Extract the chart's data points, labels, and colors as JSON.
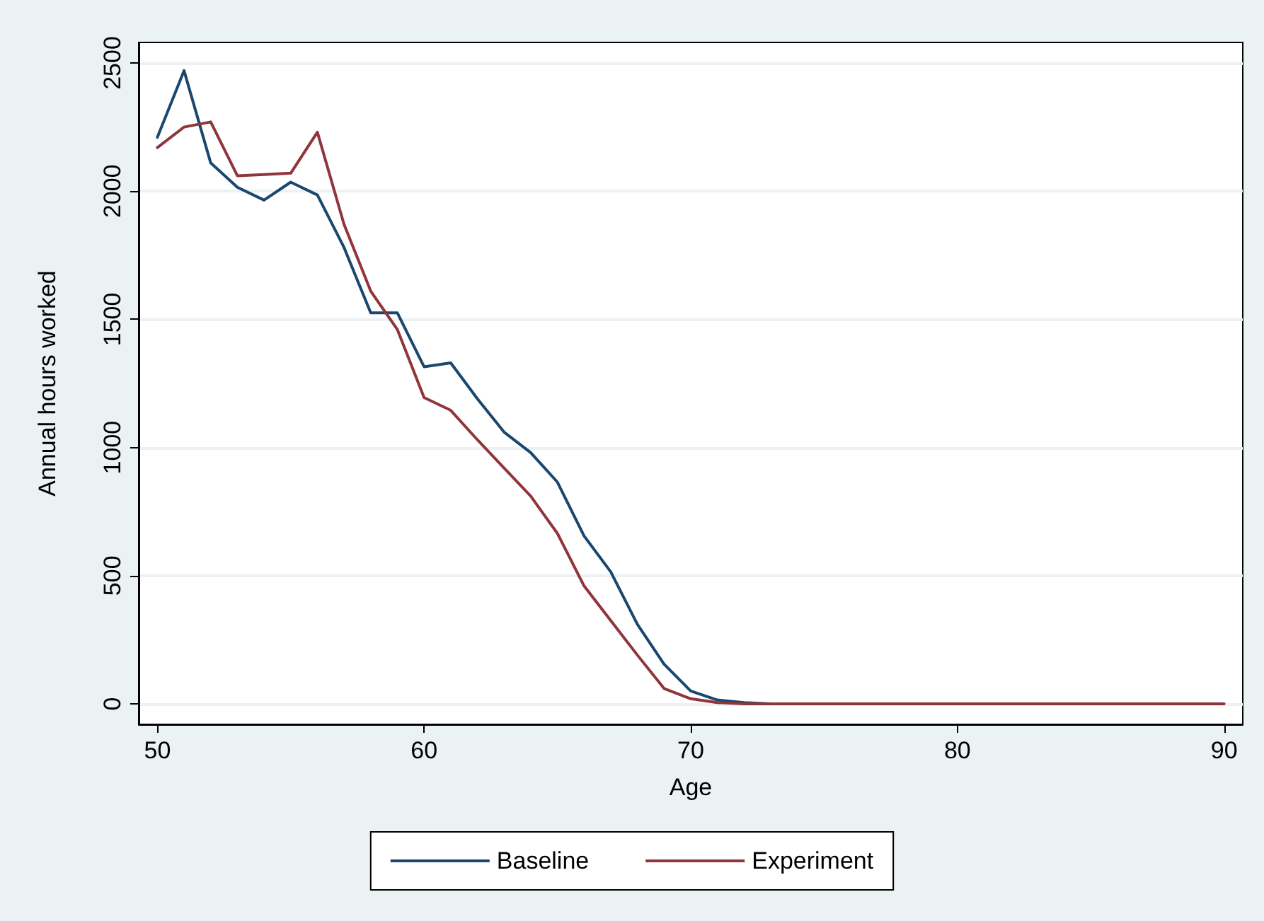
{
  "chart_data": {
    "type": "line",
    "xlabel": "Age",
    "ylabel": "Annual hours worked",
    "x": [
      50,
      51,
      52,
      53,
      54,
      55,
      56,
      57,
      58,
      59,
      60,
      61,
      62,
      63,
      64,
      65,
      66,
      67,
      68,
      69,
      70,
      71,
      72,
      73,
      74,
      75,
      76,
      77,
      78,
      79,
      80,
      81,
      82,
      83,
      84,
      85,
      86,
      87,
      88,
      89,
      90
    ],
    "series": [
      {
        "name": "Baseline",
        "color": "#1a476f",
        "values": [
          2210,
          2470,
          2110,
          2015,
          1965,
          2035,
          1985,
          1780,
          1525,
          1525,
          1315,
          1330,
          1190,
          1060,
          980,
          865,
          655,
          515,
          310,
          155,
          50,
          15,
          5,
          0,
          0,
          null,
          null,
          null,
          null,
          null,
          null,
          null,
          null,
          null,
          null,
          null,
          null,
          null,
          null,
          null,
          null
        ]
      },
      {
        "name": "Experiment",
        "color": "#90353b",
        "values": [
          2170,
          2250,
          2270,
          2060,
          2065,
          2070,
          2230,
          1870,
          1610,
          1460,
          1195,
          1145,
          1030,
          920,
          810,
          665,
          460,
          325,
          190,
          60,
          20,
          5,
          0,
          0,
          0,
          0,
          0,
          0,
          0,
          0,
          0,
          0,
          0,
          0,
          0,
          0,
          0,
          0,
          0,
          0,
          0
        ]
      }
    ],
    "xlim": [
      49.3,
      90.7
    ],
    "xticks": [
      50,
      60,
      70,
      80,
      90
    ],
    "ylim": [
      -80,
      2580
    ],
    "yticks": [
      0,
      500,
      1000,
      1500,
      2000,
      2500
    ],
    "grid": "y",
    "legend": "bottom",
    "marker": "none",
    "line_style": "solid"
  }
}
